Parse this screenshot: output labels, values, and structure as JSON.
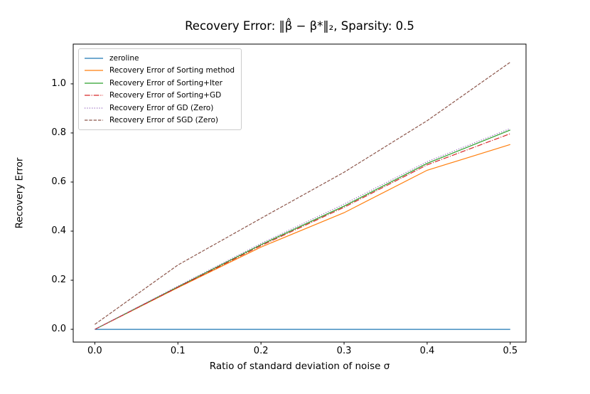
{
  "chart_data": {
    "type": "line",
    "title": "Recovery Error: ‖β̂ − β*‖₂, Sparsity: 0.5",
    "xlabel": "Ratio of standard deviation of noise σ",
    "ylabel": "Recovery Error",
    "x": [
      0.0,
      0.1,
      0.2,
      0.3,
      0.4,
      0.5
    ],
    "series": [
      {
        "name": "zeroline",
        "color": "#1f77b4",
        "style": "solid",
        "values": [
          0.0,
          0.0,
          0.0,
          0.0,
          0.0,
          0.0
        ]
      },
      {
        "name": "Recovery Error of Sorting method",
        "color": "#ff7f0e",
        "style": "solid",
        "values": [
          0.0,
          0.17,
          0.335,
          0.475,
          0.648,
          0.753
        ]
      },
      {
        "name": "Recovery Error of Sorting+Iter",
        "color": "#2ca02c",
        "style": "solid",
        "values": [
          0.0,
          0.173,
          0.345,
          0.502,
          0.676,
          0.812
        ]
      },
      {
        "name": "Recovery Error of Sorting+GD",
        "color": "#d62728",
        "style": "dashdot",
        "values": [
          0.0,
          0.171,
          0.341,
          0.497,
          0.67,
          0.797
        ]
      },
      {
        "name": "Recovery Error of GD (Zero)",
        "color": "#9467bd",
        "style": "dotted",
        "values": [
          0.0,
          0.176,
          0.35,
          0.51,
          0.683,
          0.818
        ]
      },
      {
        "name": "Recovery Error of SGD (Zero)",
        "color": "#8c564b",
        "style": "dashed",
        "values": [
          0.02,
          0.262,
          0.452,
          0.64,
          0.85,
          1.088
        ]
      }
    ],
    "xticks": [
      0.0,
      0.1,
      0.2,
      0.3,
      0.4,
      0.5
    ],
    "yticks": [
      0.0,
      0.2,
      0.4,
      0.6,
      0.8,
      1.0
    ],
    "xlim": [
      -0.026,
      0.519
    ],
    "ylim": [
      -0.052,
      1.162
    ],
    "grid": false,
    "legend_position": "upper left",
    "axis_color": "#000000",
    "background": "#ffffff"
  }
}
